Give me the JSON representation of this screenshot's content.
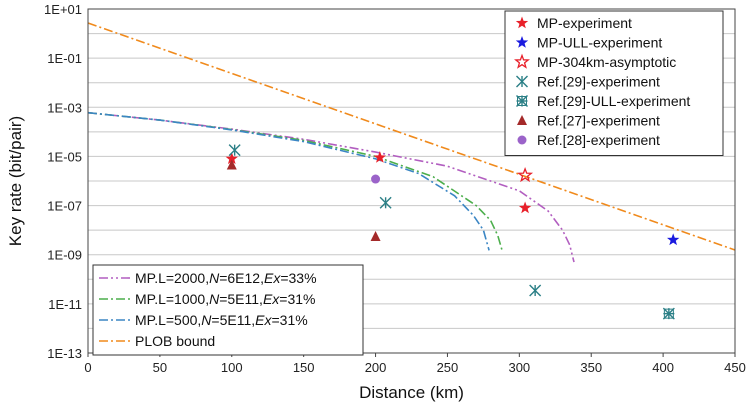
{
  "chart_data": {
    "type": "scatter",
    "title": "",
    "xlabel": "Distance (km)",
    "ylabel": "Key rate (bit/pair)",
    "xlim": [
      0,
      450
    ],
    "ylim_log10": [
      -13,
      1
    ],
    "yscale": "log",
    "grid": "horizontal",
    "x_ticks": [
      "0",
      "50",
      "100",
      "150",
      "200",
      "250",
      "300",
      "350",
      "400",
      "450"
    ],
    "y_ticks": [
      "1E+01",
      "1E-01",
      "1E-03",
      "1E-05",
      "1E-07",
      "1E-09",
      "1E-11",
      "1E-13"
    ],
    "point_series": [
      {
        "name": "MP-experiment",
        "marker": "star",
        "color": "#e8202a",
        "x": [
          100,
          203,
          304
        ],
        "y": [
          8e-06,
          9e-06,
          8e-08
        ]
      },
      {
        "name": "MP-ULL-experiment",
        "marker": "star",
        "color": "#1a1adf",
        "x": [
          407
        ],
        "y": [
          4e-09
        ]
      },
      {
        "name": "MP-304km-asymptotic",
        "marker": "star-open",
        "color": "#e8202a",
        "x": [
          304
        ],
        "y": [
          1.7e-06
        ]
      },
      {
        "name": "Ref.[29]-experiment",
        "marker": "asterisk",
        "color": "#2b7f86",
        "x": [
          102,
          207,
          311
        ],
        "y": [
          1.8e-05,
          1.3e-07,
          3.5e-11
        ]
      },
      {
        "name": "Ref.[29]-ULL-experiment",
        "marker": "asterisk-x",
        "color": "#2b7f86",
        "x": [
          404
        ],
        "y": [
          4e-12
        ]
      },
      {
        "name": "Ref.[27]-experiment",
        "marker": "triangle",
        "color": "#a42a2a",
        "x": [
          100,
          200
        ],
        "y": [
          4.5e-06,
          5.5e-09
        ]
      },
      {
        "name": "Ref.[28]-experiment",
        "marker": "circle",
        "color": "#9b63c9",
        "x": [
          200
        ],
        "y": [
          1.2e-06
        ]
      }
    ],
    "line_series": [
      {
        "name": "MP.L=2000,N=6E12,Ex=33%",
        "name_parts": [
          "MP.L=2000,",
          "N",
          "=6E12,",
          "Ex",
          "=33%"
        ],
        "style": "dashdotdot",
        "color": "#b25ec0",
        "x": [
          0,
          50,
          100,
          150,
          200,
          250,
          300,
          320,
          330,
          335,
          338
        ],
        "y": [
          0.0006,
          0.0003,
          0.00013,
          5e-05,
          1.5e-05,
          4e-06,
          4e-07,
          6e-08,
          1e-08,
          2.5e-09,
          5e-10
        ]
      },
      {
        "name": "MP.L=1000,N=5E11,Ex=31%",
        "name_parts": [
          "MP.L=1000,",
          "N",
          "=5E11,",
          "Ex",
          "=31%"
        ],
        "style": "dashdot",
        "color": "#4cae4c",
        "x": [
          0,
          50,
          100,
          150,
          200,
          240,
          270,
          280,
          285,
          288
        ],
        "y": [
          0.0006,
          0.0003,
          0.000125,
          4.5e-05,
          1e-05,
          1.5e-06,
          1e-07,
          2.5e-08,
          6e-09,
          1.5e-09
        ]
      },
      {
        "name": "MP.L=500,N=5E11,Ex=31%",
        "name_parts": [
          "MP.L=500,",
          "N",
          "=5E11,",
          "Ex",
          "=31%"
        ],
        "style": "dashdot",
        "color": "#3b86c4",
        "x": [
          0,
          50,
          100,
          150,
          200,
          230,
          255,
          268,
          275,
          279
        ],
        "y": [
          0.0006,
          0.0003,
          0.00012,
          4e-05,
          8e-06,
          2e-06,
          2.5e-07,
          4e-08,
          1e-08,
          1.5e-09
        ]
      },
      {
        "name": "PLOB bound",
        "name_parts": [
          "PLOB bound"
        ],
        "style": "dashdot",
        "color": "#f08a1c",
        "x": [
          0,
          450
        ],
        "y": [
          2.7,
          1.55e-09
        ]
      }
    ],
    "legends": [
      "top-right",
      "bottom-left"
    ]
  }
}
